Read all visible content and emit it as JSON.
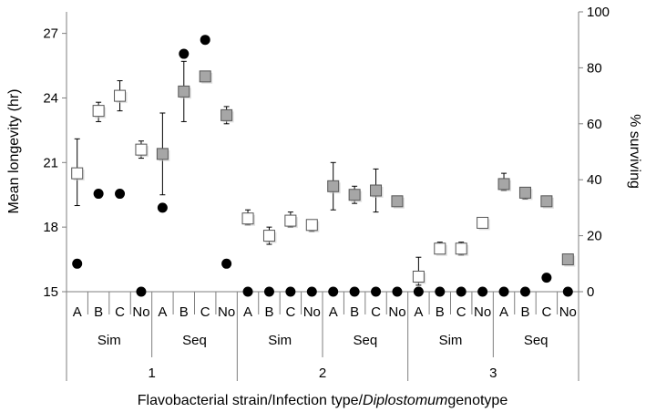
{
  "chart_data": {
    "type": "scatter",
    "title": "",
    "xlabel_parts": [
      "Flavobacterial strain/Infection type/",
      "Diplostomum",
      "genotype"
    ],
    "ylabel": "Mean longevity (hr)",
    "y2label": "% surviving",
    "ylim": [
      15,
      28
    ],
    "yticks": [
      "15",
      "18",
      "21",
      "24",
      "27"
    ],
    "y2lim": [
      0,
      100
    ],
    "y2ticks": [
      "0",
      "20",
      "40",
      "60",
      "80",
      "100"
    ],
    "categories": [
      "A",
      "B",
      "C",
      "No",
      "A",
      "B",
      "C",
      "No",
      "A",
      "B",
      "C",
      "No",
      "A",
      "B",
      "C",
      "No",
      "A",
      "B",
      "C",
      "No",
      "A",
      "B",
      "C",
      "No"
    ],
    "infection_types": [
      "Sim",
      "Seq",
      "Sim",
      "Seq",
      "Sim",
      "Seq"
    ],
    "strains": [
      "1",
      "2",
      "3"
    ],
    "colors": {
      "sim_fill": "#ffffff",
      "seq_fill": "#a6a6a6",
      "marker_stroke": "#555555",
      "survival": "#000000"
    },
    "series": [
      {
        "marker": "square",
        "values": [
          20.5,
          23.4,
          24.1,
          21.6,
          21.4,
          24.3,
          25.0,
          23.2,
          18.4,
          17.6,
          18.3,
          18.1,
          19.9,
          19.5,
          19.7,
          19.2,
          15.7,
          17.0,
          17.0,
          18.2,
          20.0,
          19.6,
          19.2,
          16.5
        ],
        "err_low": [
          19.0,
          22.9,
          23.4,
          21.2,
          19.5,
          22.9,
          25.0,
          22.8,
          18.1,
          17.2,
          18.0,
          17.8,
          18.8,
          19.1,
          18.7,
          19.2,
          15.3,
          16.8,
          16.7,
          18.2,
          19.7,
          19.3,
          19.2,
          16.5
        ],
        "err_high": [
          22.1,
          23.8,
          24.8,
          22.0,
          23.3,
          25.7,
          25.0,
          23.6,
          18.8,
          18.0,
          18.7,
          18.3,
          21.0,
          19.9,
          20.7,
          19.4,
          16.6,
          17.3,
          17.3,
          18.3,
          20.5,
          19.8,
          19.4,
          16.6
        ]
      },
      {
        "marker": "circle",
        "axis": "y2",
        "values": [
          10,
          35,
          35,
          0,
          30,
          85,
          90,
          10,
          0,
          0,
          0,
          0,
          0,
          0,
          0,
          0,
          0,
          0,
          0,
          0,
          0,
          0,
          5,
          0
        ]
      }
    ],
    "legend": "none",
    "grid": false
  }
}
